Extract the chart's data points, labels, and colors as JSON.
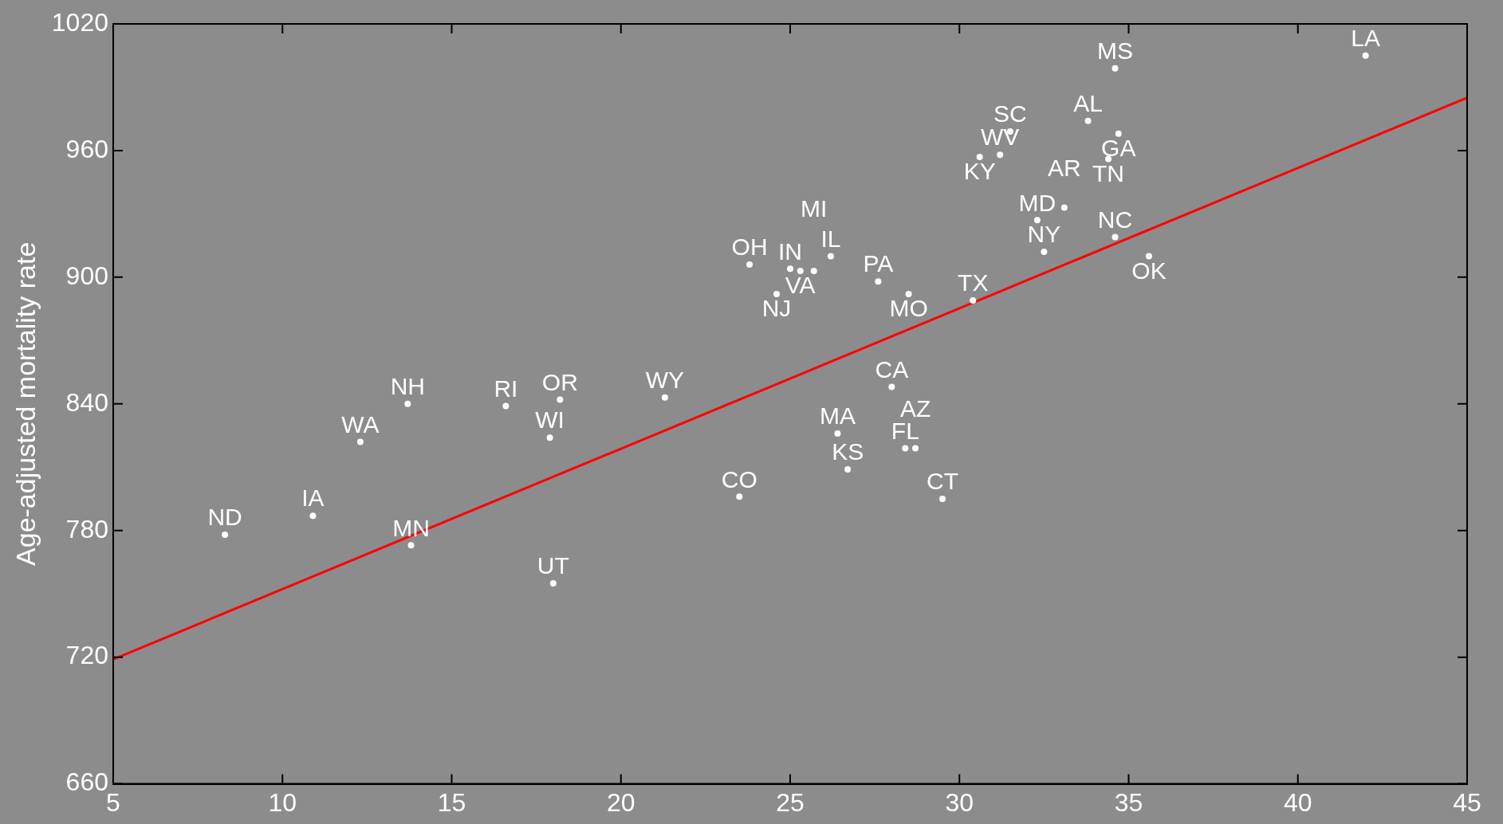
{
  "chart_data": {
    "type": "scatter",
    "ylabel": "Age-adjusted mortality rate",
    "xlim": [
      5,
      45
    ],
    "xticks": [
      5,
      10,
      15,
      20,
      25,
      30,
      35,
      40,
      45
    ],
    "ylim": [
      660,
      1020
    ],
    "yticks": [
      660,
      720,
      780,
      840,
      900,
      960,
      1020
    ],
    "grid": false,
    "legend": false,
    "series": [
      {
        "marker": "circle",
        "color": "#ffffff",
        "x": [
          42.0,
          34.6,
          33.8,
          34.7,
          31.5,
          31.2,
          30.6,
          34.4,
          32.3,
          33.1,
          34.6,
          32.5,
          35.6,
          23.8,
          25.0,
          25.3,
          25.7,
          26.2,
          24.6,
          27.6,
          28.5,
          30.4,
          28.0,
          26.4,
          28.4,
          28.7,
          26.7,
          29.5,
          23.5,
          21.3,
          18.2,
          17.9,
          16.6,
          13.7,
          12.3,
          10.9,
          8.3,
          13.8,
          18.0
        ],
        "values": [
          1005,
          999,
          974,
          968,
          969,
          958,
          957,
          956,
          927,
          933,
          919,
          912,
          910,
          906,
          904,
          903,
          903,
          910,
          892,
          898,
          892,
          889,
          848,
          826,
          819,
          819,
          809,
          795,
          796,
          843,
          842,
          824,
          839,
          840,
          822,
          787,
          778,
          773,
          755
        ],
        "value_labels": [
          "LA",
          "MS",
          "AL",
          "GA",
          "SC",
          "WV",
          "KY",
          "TN",
          "MD",
          "AR",
          "NC",
          "NY",
          "OK",
          "OH",
          "IN",
          "VA",
          "MI",
          "IL",
          "NJ",
          "PA",
          "MO",
          "TX",
          "CA",
          "MA",
          "FL",
          "AZ",
          "KS",
          "CT",
          "CO",
          "WY",
          "OR",
          "WI",
          "RI",
          "NH",
          "WA",
          "IA",
          "ND",
          "MN",
          "UT"
        ]
      },
      {
        "type": "line",
        "color": "#ff0000",
        "x": [
          5,
          45
        ],
        "values": [
          719,
          985
        ],
        "line_style": "solid",
        "marker": "none"
      }
    ]
  }
}
